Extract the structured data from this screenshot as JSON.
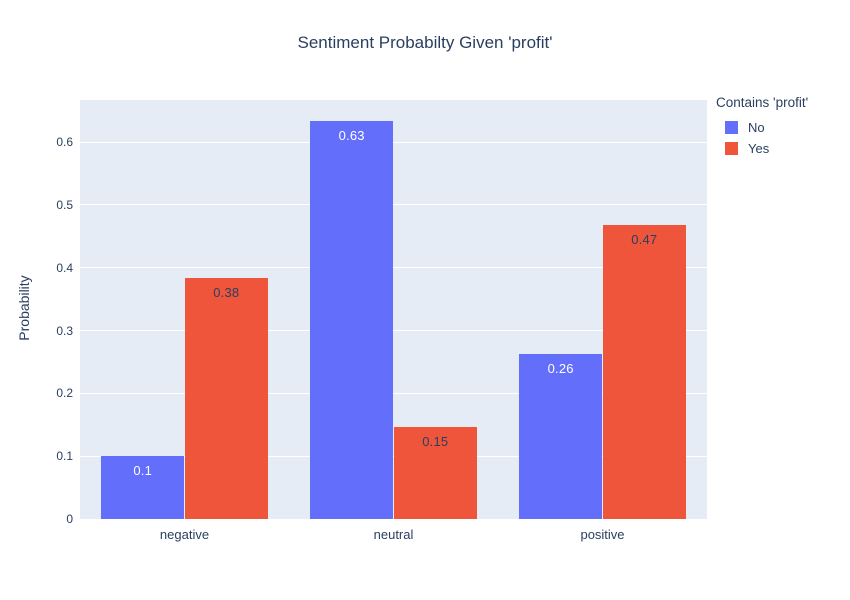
{
  "chart_data": {
    "type": "bar",
    "title": "Sentiment Probabilty Given 'profit'",
    "ylabel": "Probability",
    "xlabel": "",
    "legend_title": "Contains 'profit'",
    "legend_position": "right-top",
    "categories": [
      "negative",
      "neutral",
      "positive"
    ],
    "series": [
      {
        "name": "No",
        "color": "#636EFA",
        "values": [
          0.1,
          0.633,
          0.263
        ],
        "labels": [
          "0.1",
          "0.63",
          "0.26"
        ],
        "label_color": "#ffffff"
      },
      {
        "name": "Yes",
        "color": "#EF553B",
        "values": [
          0.383,
          0.147,
          0.468
        ],
        "labels": [
          "0.38",
          "0.15",
          "0.47"
        ],
        "label_color": "#2a3f5f"
      }
    ],
    "yticks": [
      0,
      0.1,
      0.2,
      0.3,
      0.4,
      0.5,
      0.6
    ],
    "ytick_labels": [
      "0",
      "0.1",
      "0.2",
      "0.3",
      "0.4",
      "0.5",
      "0.6"
    ],
    "ylim": [
      0,
      0.667
    ],
    "grid_on": true,
    "colors": {
      "plot_background": "#E5ECF6",
      "paper_background": "#ffffff",
      "gridline": "#ffffff",
      "text": "#2a3f5f"
    }
  }
}
